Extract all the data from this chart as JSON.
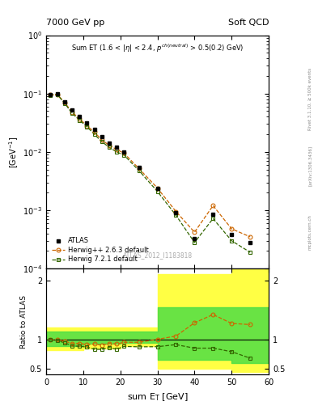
{
  "title_left": "7000 GeV pp",
  "title_right": "Soft QCD",
  "watermark": "ATLAS_2012_I1183818",
  "rivet_label": "Rivet 3.1.10, ≥ 500k events",
  "arxiv_label": "[arXiv:1306.3436]",
  "mcplots_label": "mcplots.cern.ch",
  "xlabel": "sum E$_\\mathrm{T}$ [GeV]",
  "ylabel_ratio": "Ratio to ATLAS",
  "xlim": [
    0,
    60
  ],
  "ylim_main": [
    0.0001,
    1.0
  ],
  "ylim_ratio": [
    0.4,
    2.2
  ],
  "atlas_x": [
    1,
    3,
    5,
    7,
    9,
    11,
    13,
    15,
    17,
    19,
    21,
    25,
    30,
    35,
    40,
    45,
    50,
    55
  ],
  "atlas_y": [
    0.095,
    0.098,
    0.072,
    0.052,
    0.04,
    0.031,
    0.024,
    0.018,
    0.014,
    0.012,
    0.01,
    0.0055,
    0.0024,
    0.0009,
    0.00033,
    0.00085,
    0.00038,
    0.00028
  ],
  "herwig263_x": [
    1,
    3,
    5,
    7,
    9,
    11,
    13,
    15,
    17,
    19,
    21,
    25,
    30,
    35,
    40,
    45,
    50,
    55
  ],
  "herwig263_y": [
    0.095,
    0.097,
    0.07,
    0.048,
    0.037,
    0.028,
    0.022,
    0.016,
    0.013,
    0.011,
    0.0095,
    0.0052,
    0.0024,
    0.00095,
    0.00042,
    0.0012,
    0.00048,
    0.00035
  ],
  "herwig721_x": [
    1,
    3,
    5,
    7,
    9,
    11,
    13,
    15,
    17,
    19,
    21,
    25,
    30,
    35,
    40,
    45,
    50,
    55
  ],
  "herwig721_y": [
    0.094,
    0.096,
    0.068,
    0.046,
    0.035,
    0.027,
    0.02,
    0.015,
    0.012,
    0.01,
    0.0088,
    0.0048,
    0.0021,
    0.00082,
    0.00028,
    0.00072,
    0.0003,
    0.00019
  ],
  "herwig263_ratio": [
    1.0,
    0.99,
    0.97,
    0.93,
    0.93,
    0.91,
    0.92,
    0.9,
    0.93,
    0.92,
    0.95,
    0.95,
    1.0,
    1.055,
    1.28,
    1.42,
    1.27,
    1.25
  ],
  "herwig721_ratio": [
    0.99,
    0.98,
    0.94,
    0.89,
    0.88,
    0.87,
    0.83,
    0.83,
    0.86,
    0.83,
    0.88,
    0.873,
    0.875,
    0.91,
    0.85,
    0.85,
    0.79,
    0.68
  ],
  "band_yellow_bins": [
    0,
    5,
    10,
    20,
    30,
    50,
    60
  ],
  "band_yellow_lo": [
    0.82,
    0.82,
    0.85,
    0.88,
    0.5,
    0.45,
    0.45
  ],
  "band_yellow_hi": [
    1.2,
    1.2,
    1.2,
    1.2,
    2.1,
    2.2,
    2.2
  ],
  "band_green_bins": [
    0,
    5,
    10,
    20,
    30,
    50,
    60
  ],
  "band_green_lo": [
    0.88,
    0.88,
    0.92,
    0.94,
    0.65,
    0.6,
    0.6
  ],
  "band_green_hi": [
    1.13,
    1.13,
    1.13,
    1.13,
    1.55,
    1.55,
    1.55
  ],
  "color_atlas": "#000000",
  "color_herwig263": "#cc6600",
  "color_herwig721": "#336600",
  "color_yellow": "#ffff44",
  "color_green": "#44dd44",
  "bg_color": "#ffffff"
}
